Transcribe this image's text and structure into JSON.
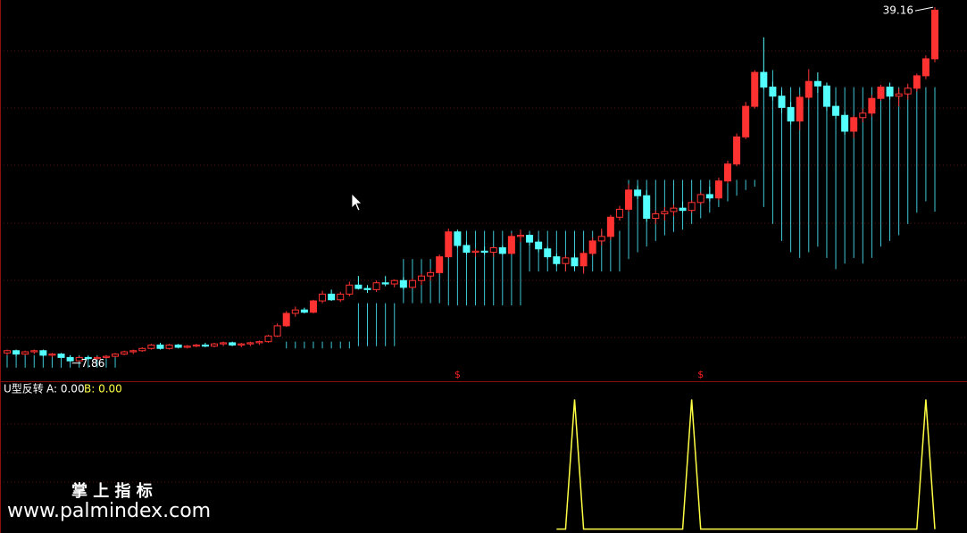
{
  "chart_data": {
    "type": "candlestick",
    "ylim": [
      6.1,
      39.8
    ],
    "up_color": "#ff3232",
    "down_color": "#54ffff",
    "line_color": "#3fc8d8",
    "max_label": 39.16,
    "min_label": 7.86,
    "ohlc": [
      [
        8.6,
        8.9,
        8.4,
        8.8
      ],
      [
        8.8,
        8.9,
        8.3,
        8.5
      ],
      [
        8.5,
        8.8,
        8.4,
        8.7
      ],
      [
        8.7,
        8.9,
        8.5,
        8.8
      ],
      [
        8.8,
        8.9,
        8.3,
        8.4
      ],
      [
        8.4,
        8.6,
        8.2,
        8.5
      ],
      [
        8.5,
        8.6,
        8.1,
        8.2
      ],
      [
        8.2,
        8.4,
        7.86,
        7.9
      ],
      [
        7.9,
        8.3,
        7.9,
        8.2
      ],
      [
        8.2,
        8.3,
        8.0,
        8.1
      ],
      [
        8.1,
        8.3,
        8.0,
        8.2
      ],
      [
        8.2,
        8.4,
        8.1,
        8.3
      ],
      [
        8.3,
        8.6,
        8.2,
        8.5
      ],
      [
        8.5,
        8.8,
        8.4,
        8.7
      ],
      [
        8.7,
        8.9,
        8.5,
        8.8
      ],
      [
        8.8,
        9.1,
        8.7,
        9.0
      ],
      [
        9.0,
        9.4,
        8.9,
        9.3
      ],
      [
        9.3,
        9.5,
        8.9,
        9.0
      ],
      [
        9.0,
        9.4,
        8.9,
        9.3
      ],
      [
        9.3,
        9.4,
        9.0,
        9.1
      ],
      [
        9.1,
        9.3,
        9.0,
        9.2
      ],
      [
        9.2,
        9.4,
        9.1,
        9.3
      ],
      [
        9.3,
        9.5,
        9.1,
        9.2
      ],
      [
        9.2,
        9.5,
        9.1,
        9.4
      ],
      [
        9.4,
        9.6,
        9.2,
        9.5
      ],
      [
        9.5,
        9.6,
        9.2,
        9.3
      ],
      [
        9.3,
        9.5,
        9.1,
        9.4
      ],
      [
        9.4,
        9.6,
        9.2,
        9.5
      ],
      [
        9.5,
        9.7,
        9.3,
        9.6
      ],
      [
        9.6,
        10.2,
        9.5,
        10.1
      ],
      [
        10.1,
        11.2,
        10.0,
        11.0
      ],
      [
        11.0,
        12.3,
        10.9,
        12.1
      ],
      [
        12.1,
        12.7,
        11.8,
        12.4
      ],
      [
        12.4,
        12.6,
        12.1,
        12.2
      ],
      [
        12.2,
        13.3,
        12.1,
        13.2
      ],
      [
        13.2,
        14.1,
        13.0,
        13.8
      ],
      [
        13.8,
        14.2,
        13.2,
        13.3
      ],
      [
        13.3,
        14.0,
        13.1,
        13.8
      ],
      [
        13.8,
        14.9,
        13.6,
        14.6
      ],
      [
        14.6,
        15.4,
        14.2,
        14.3
      ],
      [
        14.3,
        14.6,
        13.9,
        14.2
      ],
      [
        14.2,
        15.0,
        14.0,
        14.8
      ],
      [
        14.8,
        15.4,
        14.5,
        14.7
      ],
      [
        14.7,
        15.1,
        14.4,
        15.0
      ],
      [
        15.0,
        15.3,
        14.2,
        14.4
      ],
      [
        14.4,
        15.2,
        14.3,
        15.0
      ],
      [
        15.0,
        15.6,
        14.6,
        15.4
      ],
      [
        15.4,
        16.0,
        15.0,
        15.7
      ],
      [
        15.7,
        17.3,
        15.6,
        17.1
      ],
      [
        17.1,
        19.6,
        17.0,
        19.3
      ],
      [
        19.3,
        19.5,
        17.9,
        18.1
      ],
      [
        18.1,
        18.4,
        17.3,
        17.5
      ],
      [
        17.5,
        17.8,
        17.1,
        17.6
      ],
      [
        17.6,
        18.0,
        17.3,
        17.5
      ],
      [
        17.5,
        18.0,
        17.1,
        17.9
      ],
      [
        17.9,
        18.1,
        17.3,
        17.4
      ],
      [
        17.4,
        19.2,
        17.3,
        18.9
      ],
      [
        18.9,
        19.5,
        18.4,
        19.0
      ],
      [
        19.0,
        19.1,
        18.1,
        18.4
      ],
      [
        18.4,
        18.6,
        17.5,
        17.8
      ],
      [
        17.8,
        18.0,
        16.9,
        17.1
      ],
      [
        17.1,
        17.4,
        16.3,
        16.5
      ],
      [
        16.5,
        17.2,
        15.8,
        17.0
      ],
      [
        17.0,
        17.4,
        16.0,
        16.3
      ],
      [
        16.3,
        17.6,
        15.6,
        17.4
      ],
      [
        17.4,
        18.8,
        17.2,
        18.5
      ],
      [
        18.5,
        19.6,
        18.1,
        18.9
      ],
      [
        18.9,
        20.8,
        18.6,
        20.6
      ],
      [
        20.6,
        21.6,
        20.3,
        21.3
      ],
      [
        21.3,
        23.5,
        21.1,
        23.0
      ],
      [
        23.0,
        23.4,
        22.2,
        22.5
      ],
      [
        22.5,
        23.0,
        20.2,
        20.5
      ],
      [
        20.5,
        21.2,
        20.0,
        20.9
      ],
      [
        20.9,
        21.5,
        20.3,
        21.1
      ],
      [
        21.1,
        21.7,
        20.7,
        21.4
      ],
      [
        21.4,
        22.0,
        21.0,
        21.2
      ],
      [
        21.2,
        22.1,
        21.0,
        21.9
      ],
      [
        21.9,
        22.8,
        21.7,
        22.6
      ],
      [
        22.6,
        23.3,
        22.0,
        22.3
      ],
      [
        22.3,
        24.1,
        22.1,
        23.8
      ],
      [
        23.8,
        25.6,
        23.6,
        25.3
      ],
      [
        25.3,
        28.0,
        25.1,
        27.7
      ],
      [
        27.7,
        30.8,
        27.5,
        30.4
      ],
      [
        30.4,
        33.6,
        30.2,
        33.4
      ],
      [
        33.4,
        36.5,
        31.9,
        32.1
      ],
      [
        32.1,
        32.6,
        30.9,
        31.3
      ],
      [
        31.3,
        31.8,
        29.8,
        30.3
      ],
      [
        30.3,
        30.8,
        28.8,
        29.1
      ],
      [
        29.1,
        31.4,
        28.3,
        31.2
      ],
      [
        31.2,
        33.7,
        31.0,
        32.6
      ],
      [
        32.6,
        33.4,
        31.6,
        32.2
      ],
      [
        32.2,
        32.5,
        30.0,
        30.4
      ],
      [
        30.4,
        30.8,
        29.3,
        29.6
      ],
      [
        29.6,
        29.9,
        27.9,
        28.2
      ],
      [
        28.2,
        29.6,
        27.6,
        29.4
      ],
      [
        29.4,
        30.2,
        29.0,
        29.8
      ],
      [
        29.8,
        31.4,
        29.5,
        31.1
      ],
      [
        31.1,
        32.3,
        30.9,
        32.1
      ],
      [
        32.1,
        32.5,
        31.0,
        31.3
      ],
      [
        31.3,
        32.0,
        30.4,
        31.5
      ],
      [
        31.5,
        32.4,
        31.0,
        32.0
      ],
      [
        32.0,
        33.3,
        31.7,
        33.1
      ],
      [
        33.1,
        34.9,
        32.8,
        34.6
      ],
      [
        34.6,
        39.16,
        34.3,
        38.9
      ]
    ],
    "u_lines": [
      [
        8.4,
        7.3
      ],
      [
        8.4,
        7.3
      ],
      [
        8.4,
        7.3
      ],
      [
        8.4,
        7.3
      ],
      [
        8.4,
        7.3
      ],
      [
        8.4,
        7.3
      ],
      [
        8.4,
        7.3
      ],
      [
        8.4,
        7.3
      ],
      [
        8.4,
        7.3
      ],
      [
        8.4,
        7.3
      ],
      [
        8.4,
        7.3
      ],
      [
        8.4,
        7.3
      ],
      [
        8.4,
        7.3
      ],
      null,
      null,
      null,
      null,
      null,
      null,
      null,
      null,
      null,
      null,
      null,
      null,
      null,
      null,
      null,
      null,
      null,
      null,
      [
        9.6,
        9.0
      ],
      [
        9.6,
        9.0
      ],
      [
        9.6,
        9.0
      ],
      [
        9.6,
        9.0
      ],
      [
        9.6,
        9.0
      ],
      [
        9.6,
        9.0
      ],
      [
        9.6,
        9.0
      ],
      [
        9.6,
        9.0
      ],
      [
        13.0,
        9.2
      ],
      [
        13.0,
        9.2
      ],
      [
        13.0,
        9.2
      ],
      [
        13.0,
        9.2
      ],
      [
        13.0,
        9.2
      ],
      [
        16.9,
        13.0
      ],
      [
        16.9,
        13.0
      ],
      [
        16.9,
        13.0
      ],
      [
        16.9,
        13.0
      ],
      [
        16.9,
        13.0
      ],
      [
        19.4,
        12.8
      ],
      [
        19.4,
        12.8
      ],
      [
        19.4,
        12.8
      ],
      [
        19.4,
        12.8
      ],
      [
        19.4,
        12.8
      ],
      [
        19.4,
        12.8
      ],
      [
        19.4,
        12.8
      ],
      [
        19.4,
        12.8
      ],
      [
        19.4,
        12.8
      ],
      [
        19.4,
        15.8
      ],
      [
        19.4,
        15.8
      ],
      [
        19.4,
        15.8
      ],
      [
        19.4,
        15.8
      ],
      [
        19.4,
        15.8
      ],
      [
        19.4,
        15.8
      ],
      [
        19.4,
        15.8
      ],
      [
        19.4,
        15.8
      ],
      [
        19.4,
        15.8
      ],
      [
        19.4,
        15.8
      ],
      [
        19.4,
        15.8
      ],
      [
        23.9,
        16.9
      ],
      [
        23.9,
        17.5
      ],
      [
        23.9,
        18.0
      ],
      [
        23.9,
        18.5
      ],
      [
        23.9,
        19.0
      ],
      [
        23.9,
        19.3
      ],
      [
        23.9,
        19.5
      ],
      [
        23.9,
        20.0
      ],
      [
        23.9,
        20.5
      ],
      [
        23.9,
        21.0
      ],
      [
        23.9,
        21.5
      ],
      [
        23.9,
        22.0
      ],
      [
        23.9,
        22.5
      ],
      [
        23.9,
        23.0
      ],
      [
        23.9,
        23.3
      ],
      [
        33.6,
        21.5
      ],
      [
        33.6,
        20.0
      ],
      [
        32.1,
        18.5
      ],
      [
        32.1,
        17.5
      ],
      [
        32.1,
        17.0
      ],
      [
        32.1,
        17.5
      ],
      [
        32.1,
        18.0
      ],
      [
        32.1,
        17.0
      ],
      [
        32.1,
        16.0
      ],
      [
        32.1,
        16.5
      ],
      [
        32.1,
        17.0
      ],
      [
        32.1,
        16.5
      ],
      [
        32.1,
        17.0
      ],
      [
        32.1,
        18.0
      ],
      [
        32.1,
        18.5
      ],
      [
        32.1,
        19.0
      ],
      [
        32.1,
        20.0
      ],
      [
        32.1,
        21.0
      ],
      [
        32.1,
        22.0
      ],
      [
        32.1,
        21.1
      ]
    ],
    "signal_label": "$",
    "signal_at": [
      50,
      77
    ],
    "indicator": {
      "name": "U型反转",
      "a_label": "A: 0.00",
      "b_label": "B: 0.00",
      "color": "#ffff44",
      "ylim": [
        -0.03,
        1.12
      ],
      "values": [
        null,
        null,
        null,
        null,
        null,
        null,
        null,
        null,
        null,
        null,
        null,
        null,
        null,
        null,
        null,
        null,
        null,
        null,
        null,
        null,
        null,
        null,
        null,
        null,
        null,
        null,
        null,
        null,
        null,
        null,
        null,
        null,
        null,
        null,
        null,
        null,
        null,
        null,
        null,
        null,
        null,
        null,
        null,
        null,
        null,
        null,
        null,
        null,
        null,
        null,
        null,
        null,
        null,
        null,
        null,
        null,
        null,
        null,
        null,
        null,
        null,
        0,
        0,
        1,
        0,
        0,
        0,
        0,
        0,
        0,
        0,
        0,
        0,
        0,
        0,
        0,
        1,
        0,
        0,
        0,
        0,
        0,
        0,
        0,
        0,
        0,
        0,
        0,
        0,
        0,
        0,
        0,
        0,
        0,
        0,
        0,
        0,
        0,
        0,
        0,
        0,
        0,
        1,
        0
      ]
    },
    "watermark_title": "掌 上 指 标",
    "watermark_url": "www.palmindex.com"
  }
}
